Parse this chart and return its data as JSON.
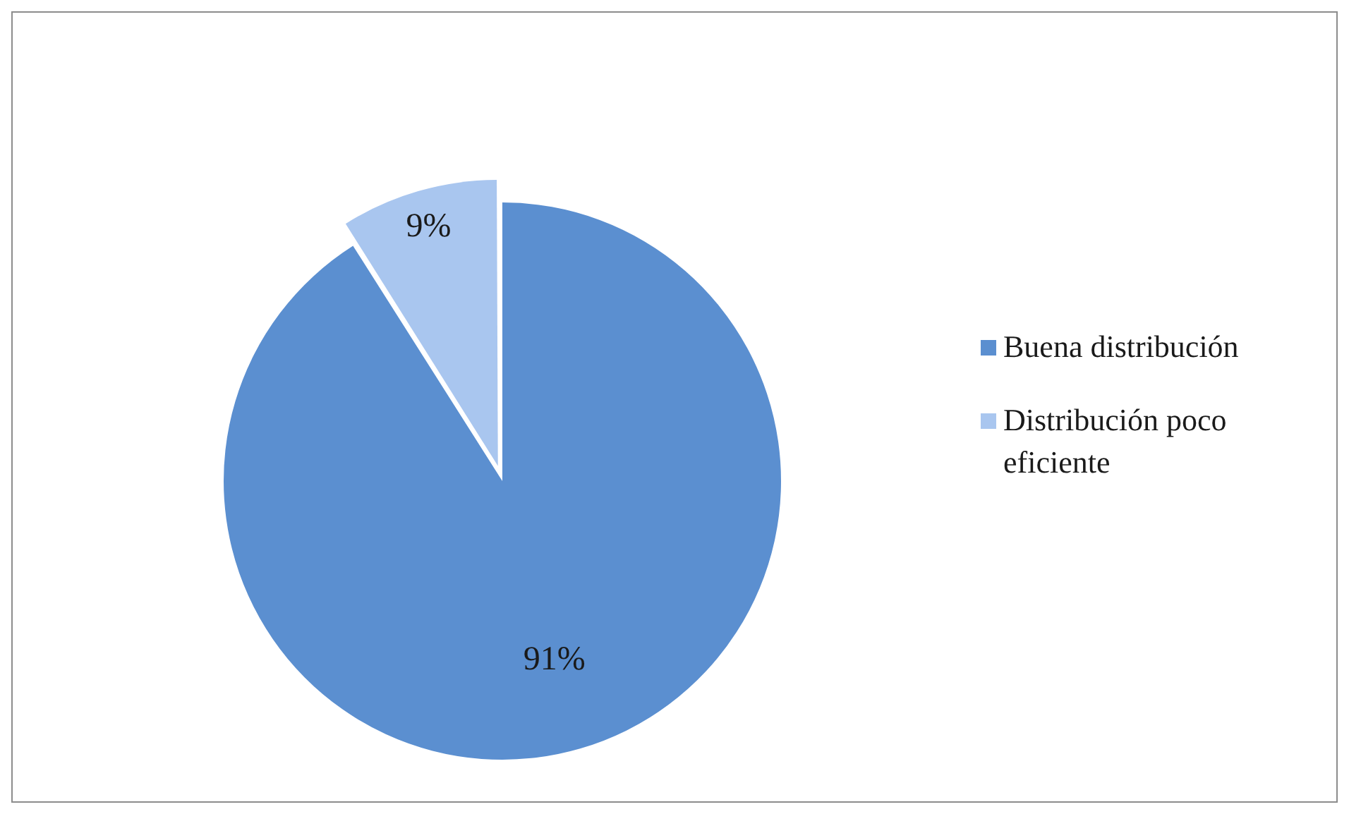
{
  "chart_data": {
    "type": "pie",
    "categories": [
      "Buena distribución",
      "Distribución poco eficiente"
    ],
    "values": [
      91,
      9
    ],
    "colors": [
      "#5b8fd0",
      "#a9c6ef"
    ],
    "value_labels": [
      "91%",
      "9%"
    ],
    "legend": "right"
  }
}
